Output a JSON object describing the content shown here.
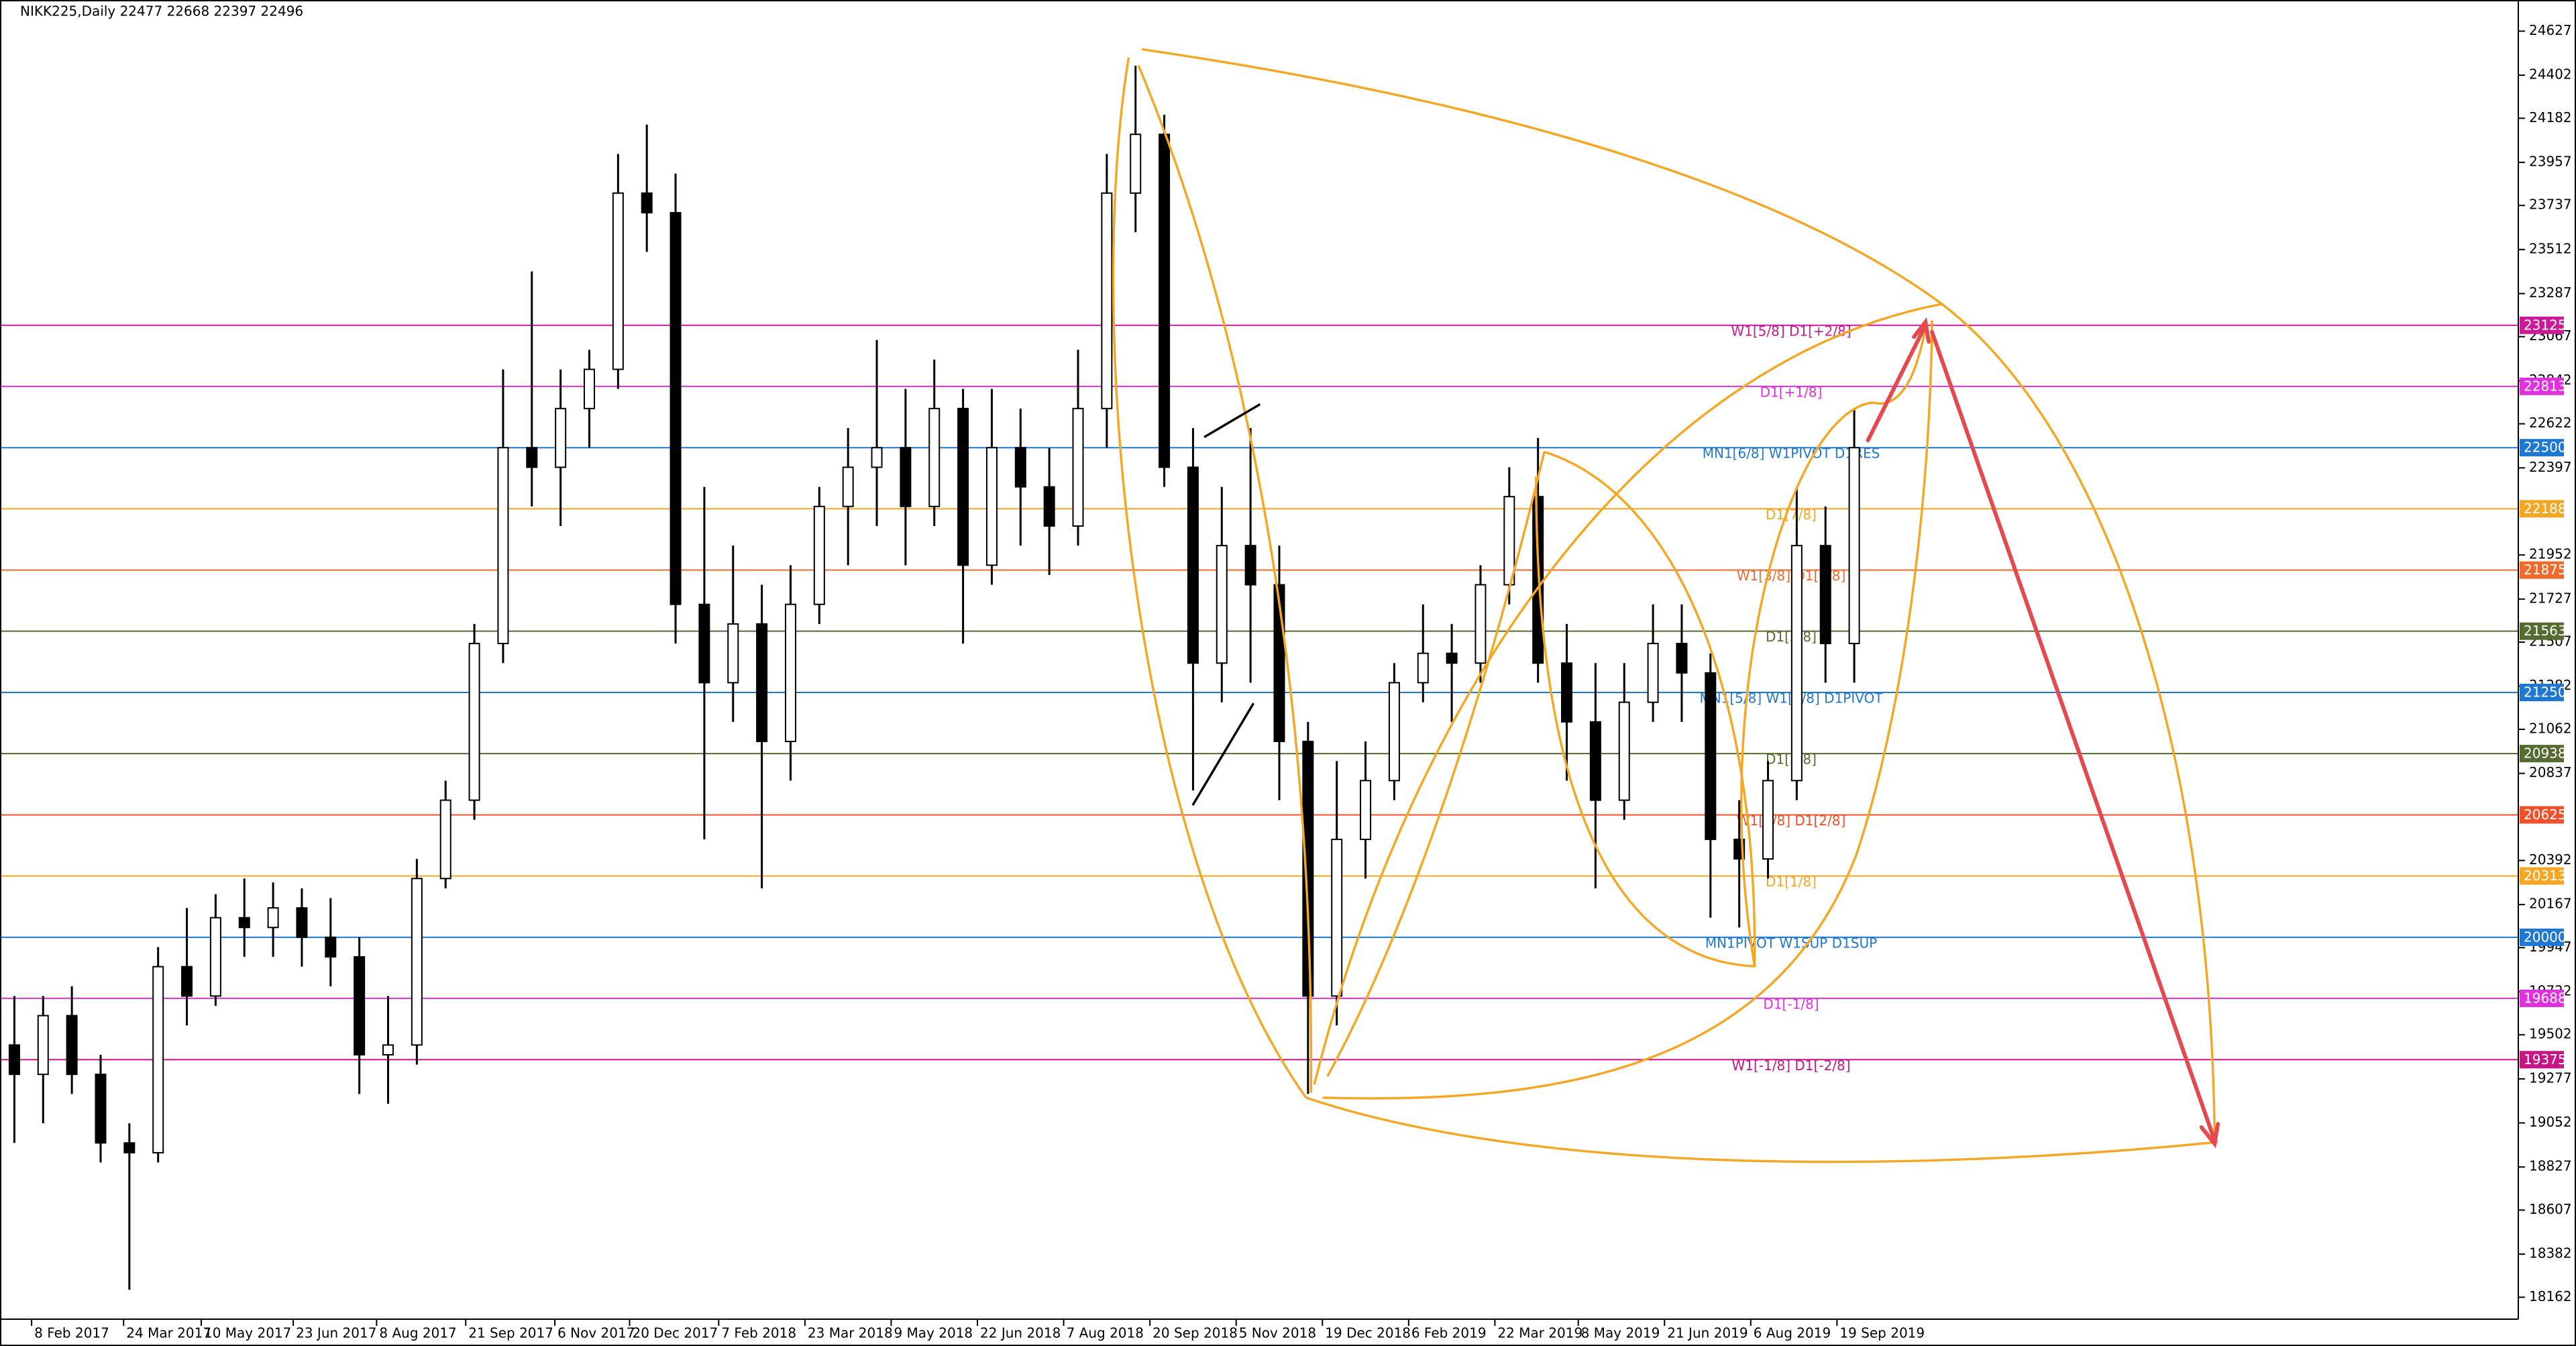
{
  "chart_data": {
    "type": "candlestick",
    "title": "NIKK225,Daily  22477 22668 22397 22496",
    "open": [
      19450,
      19300,
      19600,
      19300,
      18950,
      18900,
      19850,
      19700,
      20100,
      20050,
      20150,
      20000,
      19900,
      19400,
      19450,
      20300,
      20700,
      21500,
      22500,
      22400,
      22700,
      22900,
      23800,
      23700,
      21700,
      21300,
      21600,
      21000,
      21700,
      22200,
      22400,
      22500,
      22200,
      22700,
      21900,
      22500,
      22300,
      22100,
      22700,
      23800,
      24100,
      22400,
      21400,
      22000,
      21800,
      21000,
      19700,
      20500,
      20800,
      21300,
      21450,
      21400,
      21800,
      22250,
      21400,
      21100,
      20700,
      21200,
      21500,
      21350,
      20500,
      20400,
      20800,
      22000,
      21500
    ],
    "high": [
      19700,
      19700,
      19750,
      19400,
      19050,
      19950,
      20150,
      20220,
      20300,
      20280,
      20250,
      20200,
      20000,
      19700,
      20400,
      20800,
      21600,
      22900,
      23400,
      22900,
      23000,
      24000,
      24150,
      23900,
      22300,
      22000,
      21800,
      21900,
      22300,
      22600,
      23050,
      22800,
      22950,
      22800,
      22800,
      22700,
      22500,
      23000,
      24000,
      24450,
      24200,
      22600,
      22300,
      22600,
      22000,
      21100,
      20900,
      21000,
      21400,
      21700,
      21600,
      21900,
      22400,
      22550,
      21600,
      21400,
      21400,
      21700,
      21700,
      21450,
      20700,
      20900,
      22300,
      22200,
      22700
    ],
    "low": [
      18950,
      19050,
      19200,
      18850,
      18200,
      18850,
      19550,
      19650,
      19900,
      19900,
      19850,
      19750,
      19200,
      19150,
      19350,
      20250,
      20600,
      21400,
      22200,
      22100,
      22500,
      22800,
      23500,
      21500,
      20500,
      21100,
      20250,
      20800,
      21600,
      21900,
      22100,
      21900,
      22100,
      21500,
      21800,
      22000,
      21850,
      22000,
      22500,
      23600,
      22300,
      20750,
      21200,
      21300,
      20700,
      19200,
      19550,
      20300,
      20700,
      21200,
      21100,
      21300,
      21700,
      21300,
      20800,
      20250,
      20600,
      21100,
      21100,
      20100,
      20050,
      20300,
      20700,
      21300,
      21300
    ],
    "close": [
      19300,
      19600,
      19300,
      18950,
      18900,
      19850,
      19700,
      20100,
      20050,
      20150,
      20000,
      19900,
      19400,
      19450,
      20300,
      20700,
      21500,
      22500,
      22400,
      22700,
      22900,
      23800,
      23700,
      21700,
      21300,
      21600,
      21000,
      21700,
      22200,
      22400,
      22500,
      22200,
      22700,
      21900,
      22500,
      22300,
      22100,
      22700,
      23800,
      24100,
      22400,
      21400,
      22000,
      21800,
      21000,
      19700,
      20500,
      20800,
      21300,
      21450,
      21400,
      21800,
      22250,
      21400,
      21100,
      20700,
      21200,
      21500,
      21350,
      20500,
      20400,
      20800,
      22000,
      21500,
      22500
    ],
    "up_color": "#ffffff",
    "down_color": "#000000",
    "wick_color": "#000000",
    "xlim": [
      -0.5,
      87.1
    ],
    "ylim": [
      18050,
      24786
    ],
    "xticks": [
      {
        "value": 0.6,
        "label": "8 Feb 2017"
      },
      {
        "value": 3.8,
        "label": "24 Mar 2017"
      },
      {
        "value": 6.5,
        "label": "10 May 2017"
      },
      {
        "value": 9.7,
        "label": "23 Jun 2017"
      },
      {
        "value": 12.6,
        "label": "8 Aug 2017"
      },
      {
        "value": 15.7,
        "label": "21 Sep 2017"
      },
      {
        "value": 18.8,
        "label": "6 Nov 2017"
      },
      {
        "value": 21.4,
        "label": "20 Dec 2017"
      },
      {
        "value": 24.5,
        "label": "7 Feb 2018"
      },
      {
        "value": 27.5,
        "label": "23 Mar 2018"
      },
      {
        "value": 30.5,
        "label": "9 May 2018"
      },
      {
        "value": 33.5,
        "label": "22 Jun 2018"
      },
      {
        "value": 36.5,
        "label": "7 Aug 2018"
      },
      {
        "value": 39.5,
        "label": "20 Sep 2018"
      },
      {
        "value": 42.5,
        "label": "5 Nov 2018"
      },
      {
        "value": 45.5,
        "label": "19 Dec 2018"
      },
      {
        "value": 48.5,
        "label": "6 Feb 2019"
      },
      {
        "value": 51.5,
        "label": "22 Mar 2019"
      },
      {
        "value": 54.4,
        "label": "8 May 2019"
      },
      {
        "value": 57.4,
        "label": "21 Jun 2019"
      },
      {
        "value": 60.4,
        "label": "6 Aug 2019"
      },
      {
        "value": 63.4,
        "label": "19 Sep 2019"
      }
    ],
    "yticks": [
      24627,
      24402,
      24182,
      23957,
      23737,
      23512,
      23287,
      23067,
      22842,
      22622,
      22397,
      21952,
      21727,
      21507,
      21282,
      21062,
      20837,
      20392,
      20167,
      19947,
      19722,
      19502,
      19277,
      19052,
      18827,
      18607,
      18382,
      18162
    ],
    "levels": [
      {
        "value": 23125,
        "label": "W1[5/8] D1[+2/8]",
        "color": "#cc1a99"
      },
      {
        "value": 22813,
        "label": "D1[+1/8]",
        "color": "#e030e0"
      },
      {
        "value": 22500,
        "label": "MN1[6/8] W1PIVOT D1RES",
        "color": "#1e78d2"
      },
      {
        "value": 22188,
        "label": "D1[7/8]",
        "color": "#f5a623"
      },
      {
        "value": 21875,
        "label": "W1[3/8] D1[6/8]",
        "color": "#f06a2c"
      },
      {
        "value": 21563,
        "label": "D1[5/8]",
        "color": "#556b2f"
      },
      {
        "value": 21250,
        "label": "MN1[5/8] W1[2/8] D1PIVOT",
        "color": "#1e78d2"
      },
      {
        "value": 20938,
        "label": "D1[3/8]",
        "color": "#556b2f"
      },
      {
        "value": 20625,
        "label": "W1[1/8] D1[2/8]",
        "color": "#f0502a"
      },
      {
        "value": 20313,
        "label": "D1[1/8]",
        "color": "#f5a623"
      },
      {
        "value": 20000,
        "label": "MN1PIVOT W1SUP D1SUP",
        "color": "#1e78d2"
      },
      {
        "value": 19688,
        "label": "D1[-1/8]",
        "color": "#e030e0"
      },
      {
        "value": 19375,
        "label": "W1[-1/8] D1[-2/8]",
        "color": "#c71585"
      }
    ]
  }
}
